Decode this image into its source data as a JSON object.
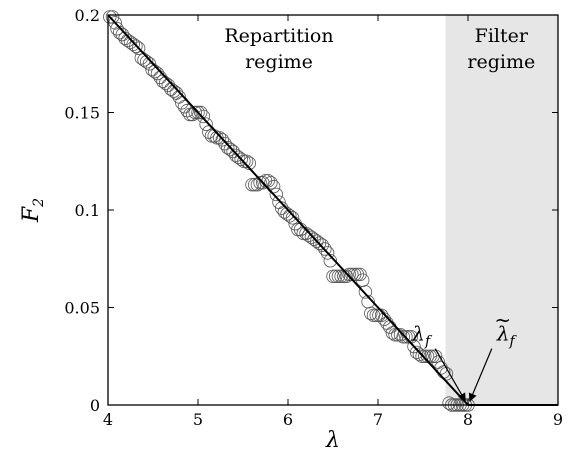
{
  "chart_data": {
    "type": "scatter",
    "title": "",
    "xlabel": "λ",
    "ylabel": "F",
    "ylabel_sub": "2",
    "xlim": [
      4,
      9
    ],
    "ylim": [
      0,
      0.2
    ],
    "x_ticks": [
      "4",
      "5",
      "6",
      "7",
      "8",
      "9"
    ],
    "y_ticks": [
      "0",
      "0.05",
      "0.1",
      "0.15",
      "0.2"
    ],
    "x_tick_values": [
      4,
      5,
      6,
      7,
      8,
      9
    ],
    "y_tick_values": [
      0,
      0.05,
      0.1,
      0.15,
      0.2
    ],
    "grid": false,
    "regions": [
      {
        "label_lines": [
          "Repartition",
          "regime"
        ],
        "x_range": [
          4,
          7.75
        ],
        "color": "#ffffff"
      },
      {
        "label_lines": [
          "Filter",
          "regime"
        ],
        "x_range": [
          7.75,
          9
        ],
        "color": "#e6e6e6"
      }
    ],
    "series": [
      {
        "style": "open-circles",
        "color": "#555555",
        "points": [
          [
            4.02,
            0.199
          ],
          [
            4.05,
            0.199
          ],
          [
            4.08,
            0.196
          ],
          [
            4.1,
            0.193
          ],
          [
            4.13,
            0.191
          ],
          [
            4.16,
            0.19
          ],
          [
            4.19,
            0.188
          ],
          [
            4.22,
            0.187
          ],
          [
            4.25,
            0.186
          ],
          [
            4.28,
            0.185
          ],
          [
            4.31,
            0.184
          ],
          [
            4.34,
            0.183
          ],
          [
            4.37,
            0.178
          ],
          [
            4.4,
            0.177
          ],
          [
            4.43,
            0.176
          ],
          [
            4.46,
            0.175
          ],
          [
            4.49,
            0.172
          ],
          [
            4.52,
            0.171
          ],
          [
            4.55,
            0.17
          ],
          [
            4.58,
            0.168
          ],
          [
            4.61,
            0.166
          ],
          [
            4.64,
            0.165
          ],
          [
            4.67,
            0.164
          ],
          [
            4.7,
            0.162
          ],
          [
            4.73,
            0.161
          ],
          [
            4.76,
            0.16
          ],
          [
            4.79,
            0.158
          ],
          [
            4.82,
            0.155
          ],
          [
            4.85,
            0.153
          ],
          [
            4.88,
            0.151
          ],
          [
            4.91,
            0.149
          ],
          [
            4.94,
            0.149
          ],
          [
            4.97,
            0.15
          ],
          [
            5.0,
            0.15
          ],
          [
            5.03,
            0.15
          ],
          [
            5.06,
            0.148
          ],
          [
            5.09,
            0.144
          ],
          [
            5.12,
            0.14
          ],
          [
            5.15,
            0.138
          ],
          [
            5.18,
            0.138
          ],
          [
            5.21,
            0.137
          ],
          [
            5.24,
            0.137
          ],
          [
            5.27,
            0.136
          ],
          [
            5.3,
            0.134
          ],
          [
            5.33,
            0.132
          ],
          [
            5.36,
            0.131
          ],
          [
            5.39,
            0.13
          ],
          [
            5.42,
            0.128
          ],
          [
            5.45,
            0.127
          ],
          [
            5.48,
            0.126
          ],
          [
            5.51,
            0.125
          ],
          [
            5.54,
            0.125
          ],
          [
            5.57,
            0.124
          ],
          [
            5.6,
            0.113
          ],
          [
            5.63,
            0.113
          ],
          [
            5.66,
            0.113
          ],
          [
            5.69,
            0.114
          ],
          [
            5.72,
            0.114
          ],
          [
            5.75,
            0.115
          ],
          [
            5.78,
            0.115
          ],
          [
            5.81,
            0.114
          ],
          [
            5.84,
            0.112
          ],
          [
            5.87,
            0.108
          ],
          [
            5.9,
            0.104
          ],
          [
            5.93,
            0.101
          ],
          [
            5.96,
            0.099
          ],
          [
            5.99,
            0.098
          ],
          [
            6.02,
            0.097
          ],
          [
            6.05,
            0.096
          ],
          [
            6.08,
            0.093
          ],
          [
            6.11,
            0.09
          ],
          [
            6.14,
            0.09
          ],
          [
            6.17,
            0.088
          ],
          [
            6.2,
            0.088
          ],
          [
            6.23,
            0.087
          ],
          [
            6.26,
            0.086
          ],
          [
            6.29,
            0.085
          ],
          [
            6.32,
            0.084
          ],
          [
            6.35,
            0.083
          ],
          [
            6.38,
            0.082
          ],
          [
            6.41,
            0.08
          ],
          [
            6.44,
            0.078
          ],
          [
            6.47,
            0.074
          ],
          [
            6.5,
            0.066
          ],
          [
            6.53,
            0.066
          ],
          [
            6.56,
            0.066
          ],
          [
            6.59,
            0.066
          ],
          [
            6.62,
            0.066
          ],
          [
            6.65,
            0.066
          ],
          [
            6.68,
            0.067
          ],
          [
            6.71,
            0.067
          ],
          [
            6.74,
            0.067
          ],
          [
            6.77,
            0.067
          ],
          [
            6.8,
            0.067
          ],
          [
            6.83,
            0.064
          ],
          [
            6.86,
            0.058
          ],
          [
            6.89,
            0.053
          ],
          [
            6.92,
            0.047
          ],
          [
            6.95,
            0.046
          ],
          [
            6.98,
            0.046
          ],
          [
            7.01,
            0.046
          ],
          [
            7.04,
            0.046
          ],
          [
            7.07,
            0.044
          ],
          [
            7.1,
            0.042
          ],
          [
            7.13,
            0.04
          ],
          [
            7.16,
            0.037
          ],
          [
            7.19,
            0.036
          ],
          [
            7.22,
            0.036
          ],
          [
            7.25,
            0.036
          ],
          [
            7.28,
            0.035
          ],
          [
            7.31,
            0.035
          ],
          [
            7.34,
            0.035
          ],
          [
            7.37,
            0.035
          ],
          [
            7.4,
            0.03
          ],
          [
            7.43,
            0.027
          ],
          [
            7.46,
            0.026
          ],
          [
            7.49,
            0.025
          ],
          [
            7.52,
            0.025
          ],
          [
            7.55,
            0.025
          ],
          [
            7.58,
            0.025
          ],
          [
            7.61,
            0.025
          ],
          [
            7.64,
            0.025
          ],
          [
            7.67,
            0.022
          ],
          [
            7.7,
            0.019
          ],
          [
            7.73,
            0.017
          ],
          [
            7.76,
            0.016
          ],
          [
            7.79,
            0.001
          ],
          [
            7.82,
            0.0
          ],
          [
            7.85,
            0.0
          ],
          [
            7.88,
            0.0
          ],
          [
            7.91,
            0.0
          ],
          [
            7.94,
            0.0
          ],
          [
            7.97,
            0.0
          ],
          [
            8.0,
            0.0
          ]
        ]
      },
      {
        "style": "line",
        "color": "#000000",
        "points": [
          [
            4.0,
            0.2
          ],
          [
            8.0,
            0.0
          ],
          [
            9.0,
            0.0
          ]
        ]
      }
    ],
    "annotations": [
      {
        "text": "λ",
        "subscript": "f",
        "target": [
          7.97,
          0.001
        ],
        "label_at": [
          7.48,
          0.033
        ]
      },
      {
        "text": "λ",
        "tilde": true,
        "subscript": "f",
        "target": [
          8.02,
          0.001
        ],
        "label_at": [
          8.42,
          0.033
        ]
      }
    ]
  }
}
